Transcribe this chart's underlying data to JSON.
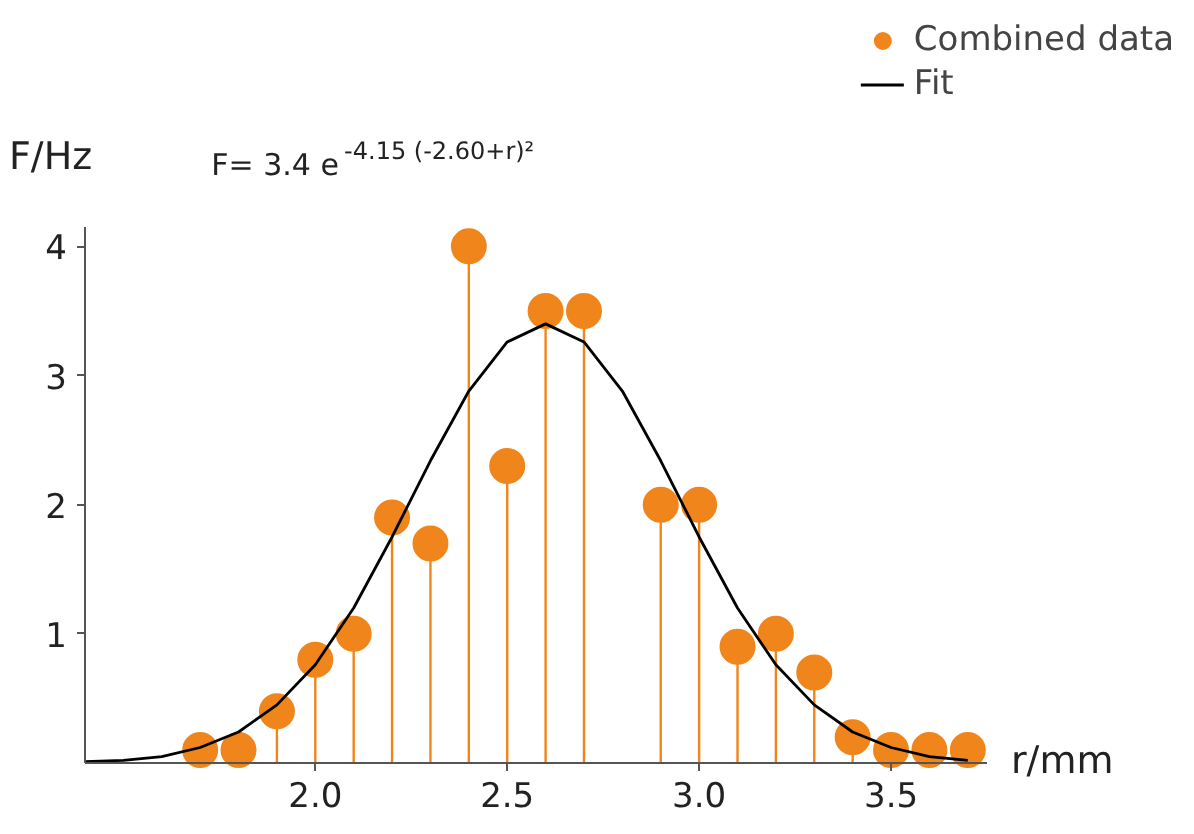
{
  "chart_data": {
    "type": "lollipop",
    "xlabel": "r/mm",
    "ylabel": "F/Hz",
    "annotations": [
      "F= 3.4 e$^{-4.15 (-2.60+r)²}$"
    ],
    "xlim": [
      1.4,
      3.75
    ],
    "ylim": [
      0,
      4.15
    ],
    "xticks": [
      {
        "value": 2.0,
        "label": "2.0"
      },
      {
        "value": 2.5,
        "label": "2.5"
      },
      {
        "value": 3.0,
        "label": "3.0"
      },
      {
        "value": 3.5,
        "label": "3.5"
      }
    ],
    "yticks": [
      1,
      2,
      3,
      4
    ],
    "grid": false,
    "legend": "top right",
    "series": [
      {
        "name": "Combined data",
        "color": "#f0851b",
        "marker": "circle",
        "x": [
          1.7,
          1.8,
          1.9,
          2.0,
          2.1,
          2.2,
          2.3,
          2.4,
          2.5,
          2.6,
          2.7,
          2.9,
          3.0,
          3.1,
          3.2,
          3.3,
          3.4,
          3.5,
          3.6,
          3.7
        ],
        "values": [
          0.1,
          0.1,
          0.4,
          0.8,
          1.0,
          1.9,
          1.7,
          4.0,
          2.3,
          3.5,
          3.5,
          2.0,
          2.0,
          0.9,
          1.0,
          0.7,
          0.2,
          0.1,
          0.1,
          0.1
        ]
      },
      {
        "name": "Fit",
        "type": "line",
        "color": "#000000",
        "line_style": "solid",
        "x": [
          1.4,
          1.5,
          1.6,
          1.7,
          1.8,
          1.9,
          2.0,
          2.1,
          2.2,
          2.3,
          2.4,
          2.5,
          2.6,
          2.7,
          2.8,
          2.9,
          3.0,
          3.1,
          3.2,
          3.3,
          3.4,
          3.5,
          3.6,
          3.7
        ],
        "values": [
          0.01,
          0.02,
          0.05,
          0.12,
          0.24,
          0.45,
          0.76,
          1.2,
          1.75,
          2.34,
          2.88,
          3.26,
          3.4,
          3.26,
          2.88,
          2.34,
          1.75,
          1.2,
          0.76,
          0.45,
          0.24,
          0.12,
          0.05,
          0.02
        ]
      }
    ]
  }
}
